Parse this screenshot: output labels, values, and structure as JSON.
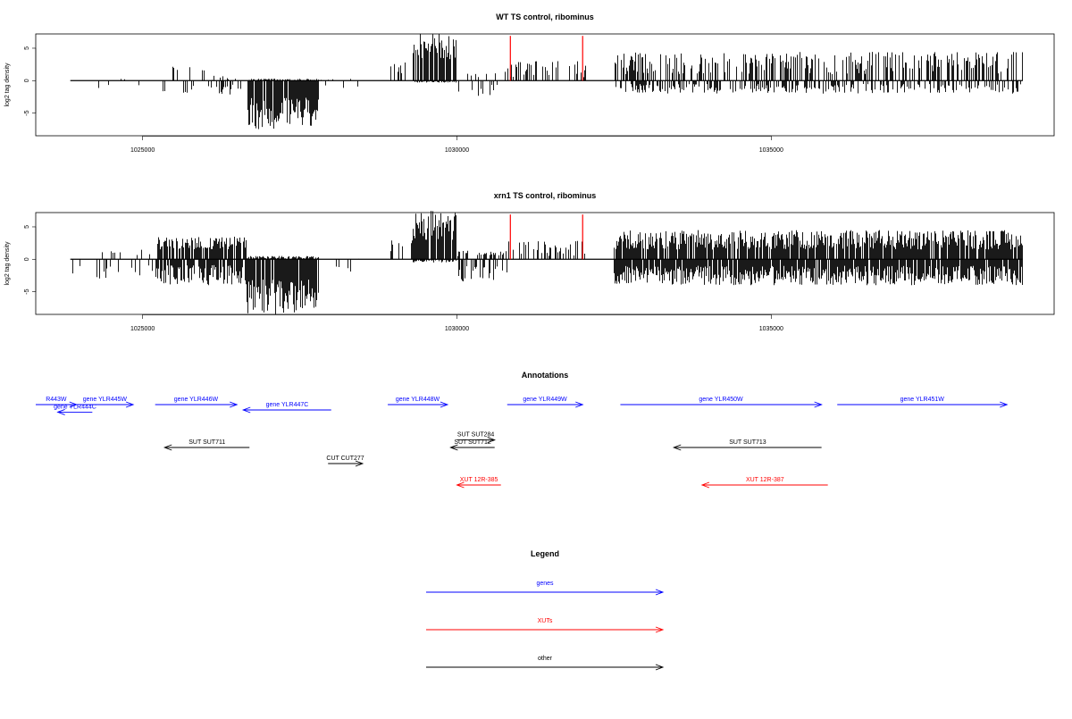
{
  "chart_data": [
    {
      "type": "bar",
      "title": "WT TS control, ribominus",
      "ylabel": "log2 tag density",
      "xlabel": "",
      "x_ticks": [
        1025000,
        1030000,
        1035000
      ],
      "y_ticks": [
        -5,
        0,
        5
      ],
      "xlim": [
        1023300,
        1039500
      ],
      "ylim": [
        -8.5,
        7.2
      ],
      "bar_color": "#000000",
      "marker_color": "#ff0000",
      "marker_positions": [
        1030850,
        1032000
      ],
      "marker_value": 6.9,
      "series": [
        {
          "segments": [
            {
              "x": [
                1023850,
                1024000
              ],
              "pos": [
                2.0,
                3.0
              ],
              "neg": [
                -0.8,
                -2.0
              ],
              "density": 0.05
            },
            {
              "x": [
                1024000,
                1025200
              ],
              "pos": [
                0.0,
                0.8
              ],
              "neg": [
                -1.5,
                -0.2
              ],
              "density": 0.02
            },
            {
              "x": [
                1025200,
                1026000
              ],
              "pos": [
                1.5,
                2.2
              ],
              "neg": [
                -2.2,
                -0.8
              ],
              "density": 0.15
            },
            {
              "x": [
                1026000,
                1026650
              ],
              "pos": [
                0.0,
                0.8
              ],
              "neg": [
                -2.2,
                -0.5
              ],
              "density": 0.3
            },
            {
              "x": [
                1026650,
                1027800
              ],
              "pos": [
                0.0,
                0.3
              ],
              "neg": [
                -7.5,
                -2.5
              ],
              "density": 0.9
            },
            {
              "x": [
                1027800,
                1028500
              ],
              "pos": [
                0.0,
                0.4
              ],
              "neg": [
                -1.5,
                -0.2
              ],
              "density": 0.05
            },
            {
              "x": [
                1028900,
                1029300
              ],
              "pos": [
                1.0,
                3.0
              ],
              "neg": [
                0.0,
                0.0
              ],
              "density": 0.3
            },
            {
              "x": [
                1029300,
                1030000
              ],
              "pos": [
                3.0,
                7.5
              ],
              "neg": [
                -0.3,
                0.0
              ],
              "density": 0.9
            },
            {
              "x": [
                1030000,
                1030800
              ],
              "pos": [
                0.5,
                1.5
              ],
              "neg": [
                -2.5,
                -0.5
              ],
              "density": 0.12
            },
            {
              "x": [
                1030800,
                1032050
              ],
              "pos": [
                0.5,
                3.0
              ],
              "neg": [
                0.0,
                0.0
              ],
              "density": 0.3
            },
            {
              "x": [
                1032500,
                1039000
              ],
              "pos": [
                1.0,
                4.5
              ],
              "neg": [
                -2.0,
                -0.5
              ],
              "density": 0.45
            }
          ]
        }
      ]
    },
    {
      "type": "bar",
      "title": "xrn1 TS control, ribominus",
      "ylabel": "log2 tag density",
      "xlabel": "",
      "x_ticks": [
        1025000,
        1030000,
        1035000
      ],
      "y_ticks": [
        -5,
        0,
        5
      ],
      "xlim": [
        1023300,
        1039500
      ],
      "ylim": [
        -8.5,
        7.2
      ],
      "bar_color": "#000000",
      "marker_color": "#ff0000",
      "marker_positions": [
        1030850,
        1032000
      ],
      "marker_value": 6.9,
      "series": [
        {
          "segments": [
            {
              "x": [
                1023850,
                1024000
              ],
              "pos": [
                2.0,
                3.5
              ],
              "neg": [
                -1.5,
                -3.0
              ],
              "density": 0.1
            },
            {
              "x": [
                1024000,
                1025200
              ],
              "pos": [
                0.5,
                1.5
              ],
              "neg": [
                -3.0,
                -0.5
              ],
              "density": 0.1
            },
            {
              "x": [
                1025200,
                1026650
              ],
              "pos": [
                1.5,
                3.5
              ],
              "neg": [
                -4.0,
                -0.8
              ],
              "density": 0.8
            },
            {
              "x": [
                1026650,
                1027800
              ],
              "pos": [
                0.0,
                0.5
              ],
              "neg": [
                -8.5,
                -3.0
              ],
              "density": 0.95
            },
            {
              "x": [
                1027800,
                1028500
              ],
              "pos": [
                0.0,
                0.5
              ],
              "neg": [
                -2.0,
                -0.5
              ],
              "density": 0.06
            },
            {
              "x": [
                1028900,
                1029300
              ],
              "pos": [
                1.0,
                3.0
              ],
              "neg": [
                0.0,
                0.0
              ],
              "density": 0.3
            },
            {
              "x": [
                1029300,
                1030000
              ],
              "pos": [
                3.0,
                7.5
              ],
              "neg": [
                -0.5,
                0.0
              ],
              "density": 0.9
            },
            {
              "x": [
                1030000,
                1030800
              ],
              "pos": [
                0.5,
                1.5
              ],
              "neg": [
                -3.5,
                -1.0
              ],
              "density": 0.35
            },
            {
              "x": [
                1030800,
                1032050
              ],
              "pos": [
                0.5,
                3.0
              ],
              "neg": [
                0.0,
                0.0
              ],
              "density": 0.3
            },
            {
              "x": [
                1032500,
                1039000
              ],
              "pos": [
                1.5,
                4.5
              ],
              "neg": [
                -4.0,
                -1.0
              ],
              "density": 0.9
            }
          ]
        }
      ]
    },
    {
      "type": "annotation-track",
      "title": "Annotations",
      "xlim": [
        1023300,
        1039500
      ],
      "colors": {
        "gene": "#0000ff",
        "XUT": "#ff0000",
        "other": "#000000"
      },
      "features": [
        {
          "label": "R443W",
          "cls": "gene",
          "from": 1023300,
          "to": 1023950,
          "row": 0
        },
        {
          "label": "gene YLR444C",
          "cls": "gene",
          "from": 1024200,
          "to": 1023650,
          "row": 0.7
        },
        {
          "label": "gene YLR445W",
          "cls": "gene",
          "from": 1023950,
          "to": 1024850,
          "row": 0
        },
        {
          "label": "gene YLR446W",
          "cls": "gene",
          "from": 1025200,
          "to": 1026500,
          "row": 0
        },
        {
          "label": "gene YLR447C",
          "cls": "gene",
          "from": 1028000,
          "to": 1026600,
          "row": 0.5
        },
        {
          "label": "gene YLR448W",
          "cls": "gene",
          "from": 1028900,
          "to": 1029850,
          "row": 0
        },
        {
          "label": "gene YLR449W",
          "cls": "gene",
          "from": 1030800,
          "to": 1032000,
          "row": 0
        },
        {
          "label": "gene YLR450W",
          "cls": "gene",
          "from": 1032600,
          "to": 1035800,
          "row": 0
        },
        {
          "label": "gene YLR451W",
          "cls": "gene",
          "from": 1036050,
          "to": 1038750,
          "row": 0
        },
        {
          "label": "SUT SUT711",
          "cls": "other",
          "from": 1026700,
          "to": 1025350,
          "row": 4
        },
        {
          "label": "CUT CUT277",
          "cls": "other",
          "from": 1027950,
          "to": 1028500,
          "row": 5.5
        },
        {
          "label": "SUT SUT284",
          "cls": "other",
          "from": 1030000,
          "to": 1030600,
          "row": 3.3
        },
        {
          "label": "SUT SUT712",
          "cls": "other",
          "from": 1030600,
          "to": 1029900,
          "row": 4
        },
        {
          "label": "SUT SUT713",
          "cls": "other",
          "from": 1035800,
          "to": 1033450,
          "row": 4
        },
        {
          "label": "XUT 12R-385",
          "cls": "XUT",
          "from": 1030700,
          "to": 1030000,
          "row": 7.5
        },
        {
          "label": "XUT 12R-387",
          "cls": "XUT",
          "from": 1035900,
          "to": 1033900,
          "row": 7.5
        }
      ]
    },
    {
      "type": "legend",
      "title": "Legend",
      "entries": [
        {
          "label": "genes",
          "color": "#0000ff"
        },
        {
          "label": "XUTs",
          "color": "#ff0000"
        },
        {
          "label": "other",
          "color": "#000000"
        }
      ]
    }
  ]
}
